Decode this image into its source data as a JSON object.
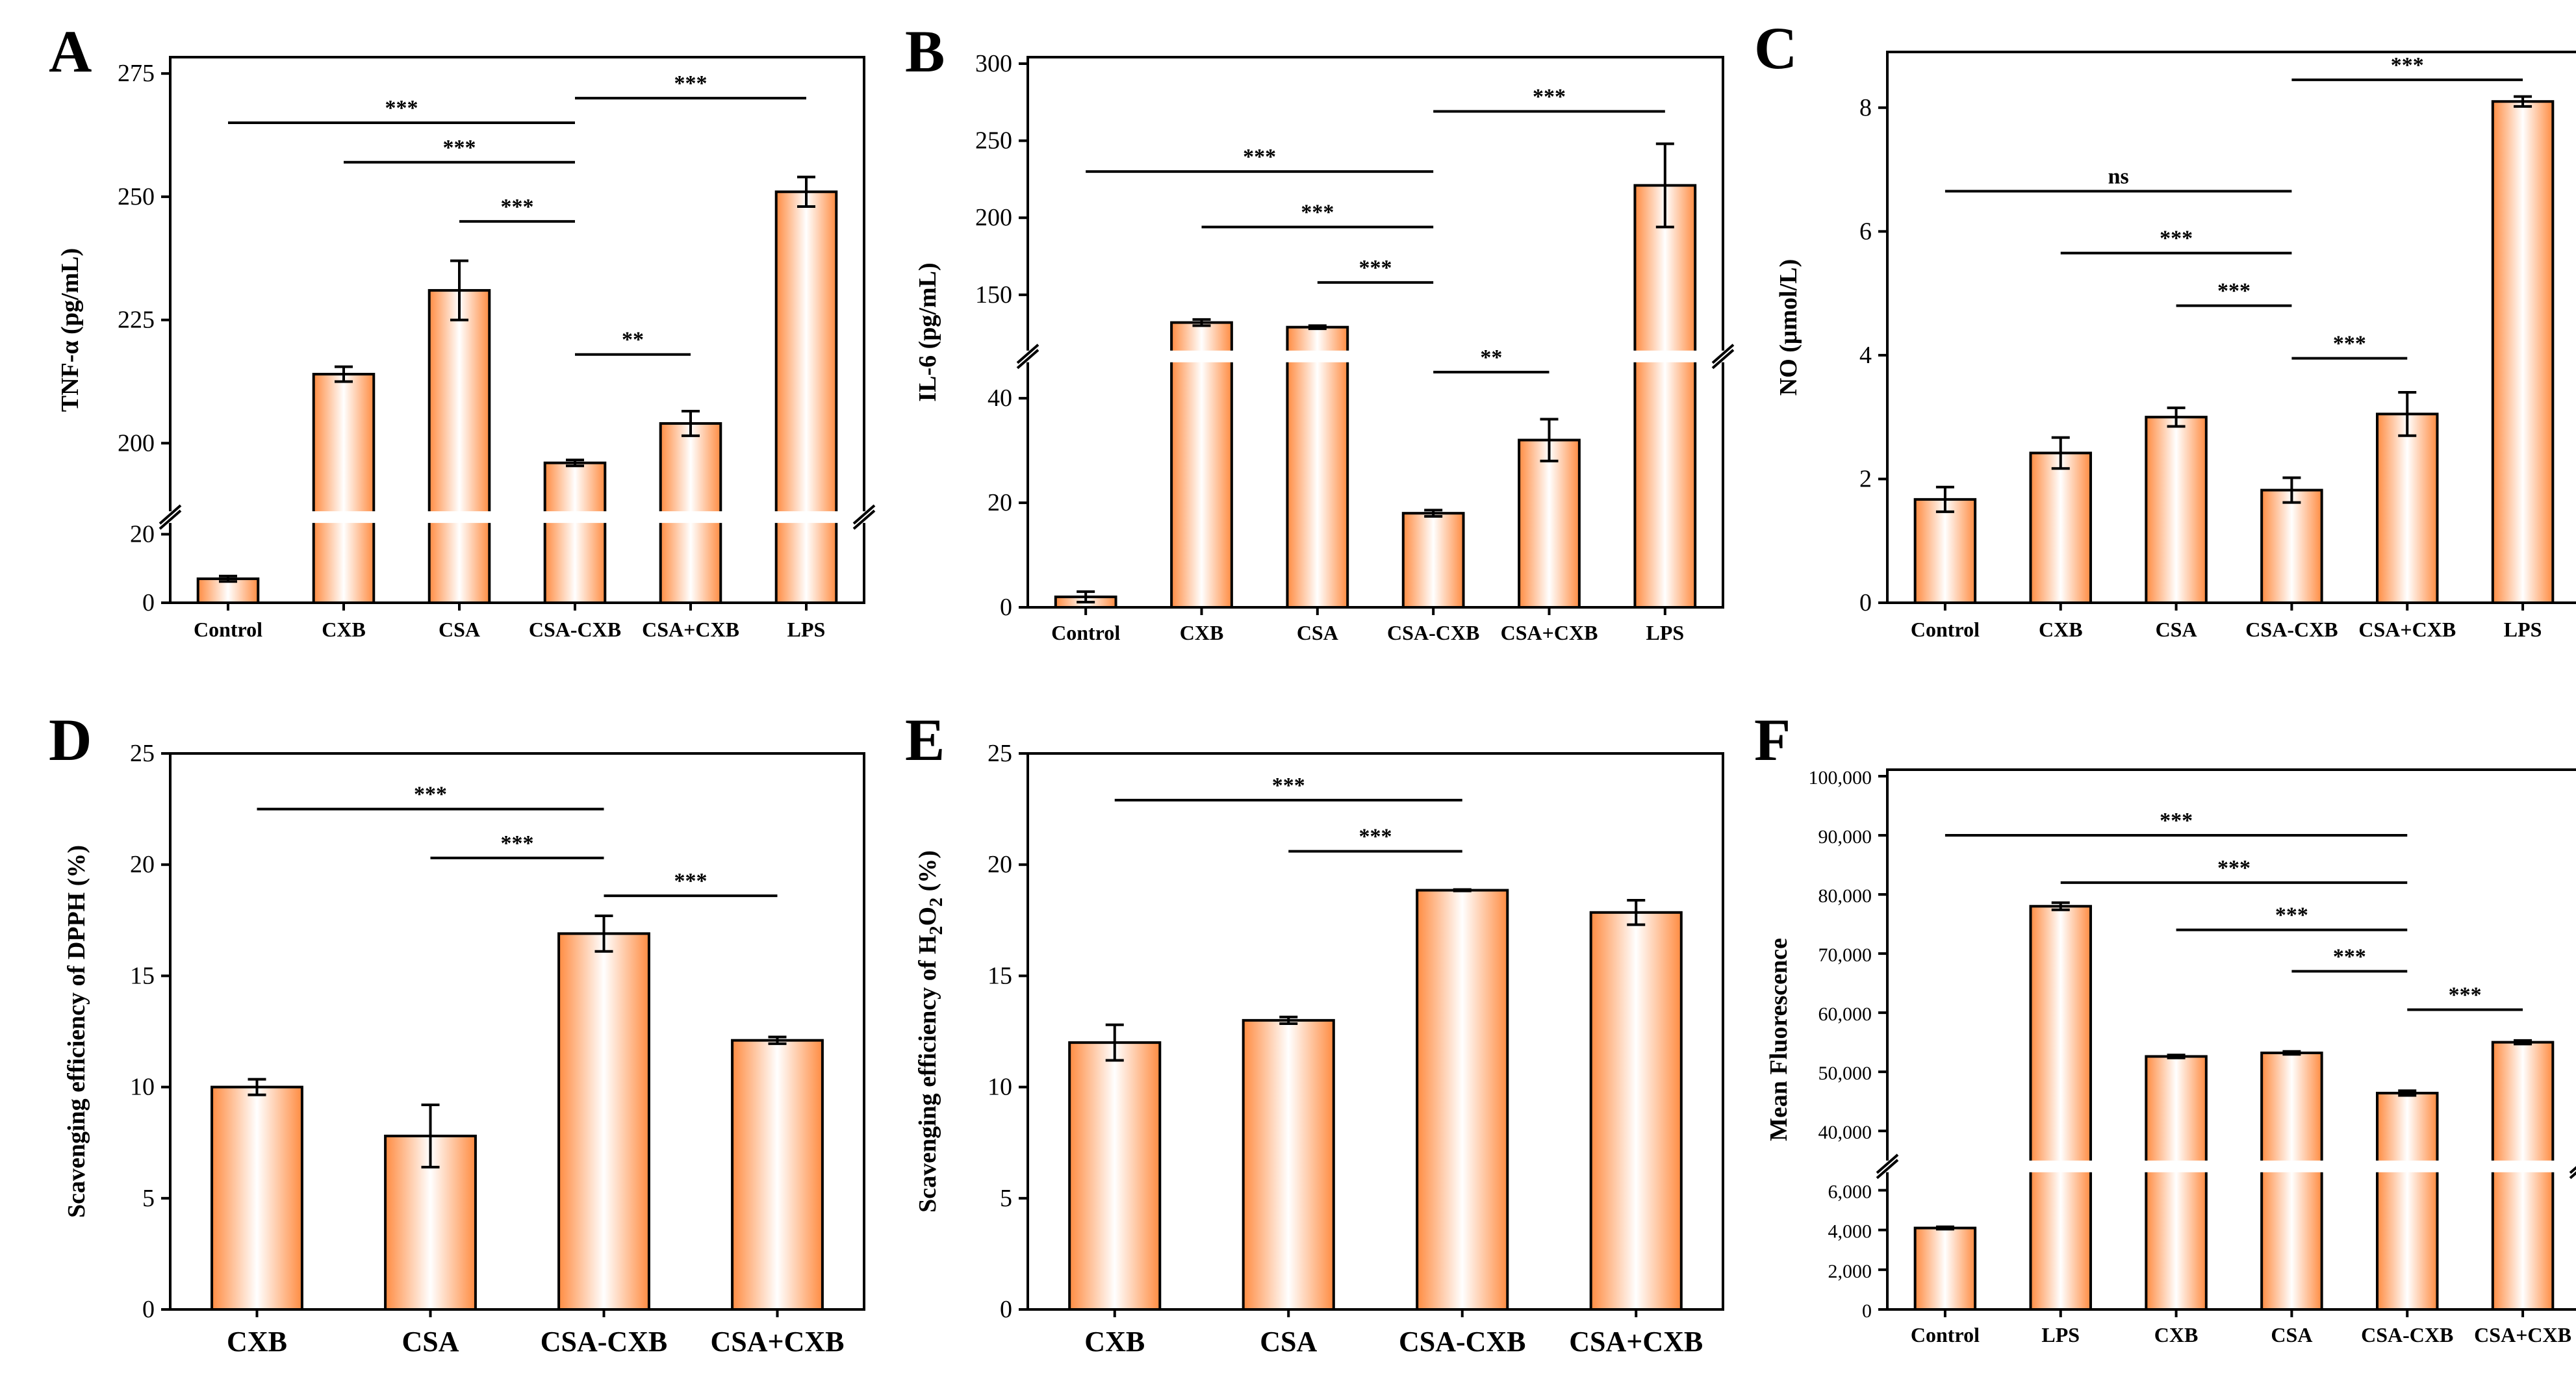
{
  "chart_data": [
    {
      "panel": "A",
      "type": "bar",
      "ylabel": "TNF-α (pg/mL)",
      "categories": [
        "Control",
        "CXB",
        "CSA",
        "CSA-CXB",
        "CSA+CXB",
        "LPS"
      ],
      "values": [
        7,
        214,
        231,
        196,
        204,
        251
      ],
      "errors": [
        0.8,
        1.5,
        6,
        0.6,
        2.5,
        3
      ],
      "y_break": {
        "lower": [
          0,
          25
        ],
        "upper": [
          185,
          277
        ]
      },
      "yticks": [
        {
          "v": 0,
          "label": "0"
        },
        {
          "v": 20,
          "label": "20"
        },
        {
          "v": 200,
          "label": "200"
        },
        {
          "v": 225,
          "label": "225"
        },
        {
          "v": 250,
          "label": "250"
        },
        {
          "v": 275,
          "label": "275"
        }
      ],
      "significance": [
        {
          "from": 0,
          "to": 3,
          "y": 265,
          "label": "***"
        },
        {
          "from": 1,
          "to": 3,
          "y": 257,
          "label": "***"
        },
        {
          "from": 2,
          "to": 3,
          "y": 245,
          "label": "***"
        },
        {
          "from": 3,
          "to": 4,
          "y": 218,
          "label": "**"
        },
        {
          "from": 3,
          "to": 5,
          "y": 270,
          "label": "***"
        }
      ]
    },
    {
      "panel": "B",
      "type": "bar",
      "ylabel": "IL-6 (pg/mL)",
      "categories": [
        "Control",
        "CXB",
        "CSA",
        "CSA-CXB",
        "CSA+CXB",
        "LPS"
      ],
      "values": [
        2,
        132,
        129,
        18,
        32,
        221
      ],
      "errors": [
        1,
        2,
        1,
        0.6,
        4,
        27
      ],
      "y_break": {
        "lower": [
          0,
          48
        ],
        "upper": [
          110,
          300
        ]
      },
      "yticks": [
        {
          "v": 0,
          "label": "0"
        },
        {
          "v": 20,
          "label": "20"
        },
        {
          "v": 40,
          "label": "40"
        },
        {
          "v": 150,
          "label": "150"
        },
        {
          "v": 200,
          "label": "200"
        },
        {
          "v": 250,
          "label": "250"
        },
        {
          "v": 300,
          "label": "300"
        }
      ],
      "significance": [
        {
          "from": 0,
          "to": 3,
          "y": 230,
          "label": "***"
        },
        {
          "from": 1,
          "to": 3,
          "y": 194,
          "label": "***"
        },
        {
          "from": 2,
          "to": 3,
          "y": 158,
          "label": "***"
        },
        {
          "from": 3,
          "to": 4,
          "y": 45,
          "label": "**"
        },
        {
          "from": 3,
          "to": 5,
          "y": 269,
          "label": "***"
        }
      ]
    },
    {
      "panel": "C",
      "type": "bar",
      "ylabel": "NO (μmol/L)",
      "categories": [
        "Control",
        "CXB",
        "CSA",
        "CSA-CXB",
        "CSA+CXB",
        "LPS"
      ],
      "values": [
        1.67,
        2.42,
        3.0,
        1.82,
        3.05,
        8.1
      ],
      "errors": [
        0.2,
        0.25,
        0.15,
        0.2,
        0.35,
        0.08
      ],
      "ylim": [
        0,
        8.9
      ],
      "yticks": [
        {
          "v": 0,
          "label": "0"
        },
        {
          "v": 2,
          "label": "2"
        },
        {
          "v": 4,
          "label": "4"
        },
        {
          "v": 6,
          "label": "6"
        },
        {
          "v": 8,
          "label": "8"
        }
      ],
      "significance": [
        {
          "from": 0,
          "to": 3,
          "y": 6.65,
          "label": "ns"
        },
        {
          "from": 1,
          "to": 3,
          "y": 5.65,
          "label": "***"
        },
        {
          "from": 2,
          "to": 3,
          "y": 4.8,
          "label": "***"
        },
        {
          "from": 3,
          "to": 4,
          "y": 3.95,
          "label": "***"
        },
        {
          "from": 3,
          "to": 5,
          "y": 8.45,
          "label": "***"
        }
      ]
    },
    {
      "panel": "D",
      "type": "bar",
      "ylabel": "Scavenging efficiency of DPPH (%)",
      "categories": [
        "CXB",
        "CSA",
        "CSA-CXB",
        "CSA+CXB"
      ],
      "values": [
        10.0,
        7.8,
        16.9,
        12.1
      ],
      "errors": [
        0.35,
        1.4,
        0.8,
        0.15
      ],
      "ylim": [
        0,
        25
      ],
      "yticks": [
        {
          "v": 0,
          "label": "0"
        },
        {
          "v": 5,
          "label": "5"
        },
        {
          "v": 10,
          "label": "10"
        },
        {
          "v": 15,
          "label": "15"
        },
        {
          "v": 20,
          "label": "20"
        },
        {
          "v": 25,
          "label": "25"
        }
      ],
      "significance": [
        {
          "from": 0,
          "to": 2,
          "y": 22.5,
          "label": "***"
        },
        {
          "from": 1,
          "to": 2,
          "y": 20.3,
          "label": "***"
        },
        {
          "from": 2,
          "to": 3,
          "y": 18.6,
          "label": "***"
        }
      ]
    },
    {
      "panel": "E",
      "type": "bar",
      "ylabel": "Scavenging efficiency of H",
      "ylabel_sub": "2",
      "ylabel_o": "O",
      "ylabel_sub2": "2",
      "ylabel_end": " (%)",
      "categories": [
        "CXB",
        "CSA",
        "CSA-CXB",
        "CSA+CXB"
      ],
      "values": [
        12.0,
        13.0,
        18.85,
        17.85
      ],
      "errors": [
        0.8,
        0.15,
        0.03,
        0.55
      ],
      "ylim": [
        0,
        25
      ],
      "yticks": [
        {
          "v": 0,
          "label": "0"
        },
        {
          "v": 5,
          "label": "5"
        },
        {
          "v": 10,
          "label": "10"
        },
        {
          "v": 15,
          "label": "15"
        },
        {
          "v": 20,
          "label": "20"
        },
        {
          "v": 25,
          "label": "25"
        }
      ],
      "significance": [
        {
          "from": 0,
          "to": 2,
          "y": 22.9,
          "label": "***"
        },
        {
          "from": 1,
          "to": 2,
          "y": 20.6,
          "label": "***"
        }
      ]
    },
    {
      "panel": "F",
      "type": "bar",
      "ylabel": "Mean Fluorescence",
      "categories": [
        "Control",
        "LPS",
        "CXB",
        "CSA",
        "CSA-CXB",
        "CSA+CXB"
      ],
      "values": [
        4100,
        78000,
        52600,
        53200,
        46400,
        55000
      ],
      "errors": [
        60,
        600,
        250,
        250,
        400,
        300
      ],
      "y_break": {
        "lower": [
          0,
          7200
        ],
        "upper": [
          34000,
          100000
        ]
      },
      "yticks": [
        {
          "v": 0,
          "label": "0"
        },
        {
          "v": 2000,
          "label": "2,000"
        },
        {
          "v": 4000,
          "label": "4,000"
        },
        {
          "v": 6000,
          "label": "6,000"
        },
        {
          "v": 40000,
          "label": "40,000"
        },
        {
          "v": 50000,
          "label": "50,000"
        },
        {
          "v": 60000,
          "label": "60,000"
        },
        {
          "v": 70000,
          "label": "70,000"
        },
        {
          "v": 80000,
          "label": "80,000"
        },
        {
          "v": 90000,
          "label": "90,000"
        },
        {
          "v": 100000,
          "label": "100,000"
        }
      ],
      "significance": [
        {
          "from": 0,
          "to": 4,
          "y": 90000,
          "label": "***"
        },
        {
          "from": 1,
          "to": 4,
          "y": 82000,
          "label": "***"
        },
        {
          "from": 2,
          "to": 4,
          "y": 74000,
          "label": "***"
        },
        {
          "from": 3,
          "to": 4,
          "y": 67000,
          "label": "***"
        },
        {
          "from": 4,
          "to": 5,
          "y": 60500,
          "label": "***"
        }
      ]
    }
  ],
  "colors": {
    "bar_edge": "#ff8c42",
    "bar_center": "#ffffff",
    "stroke": "#000000"
  }
}
